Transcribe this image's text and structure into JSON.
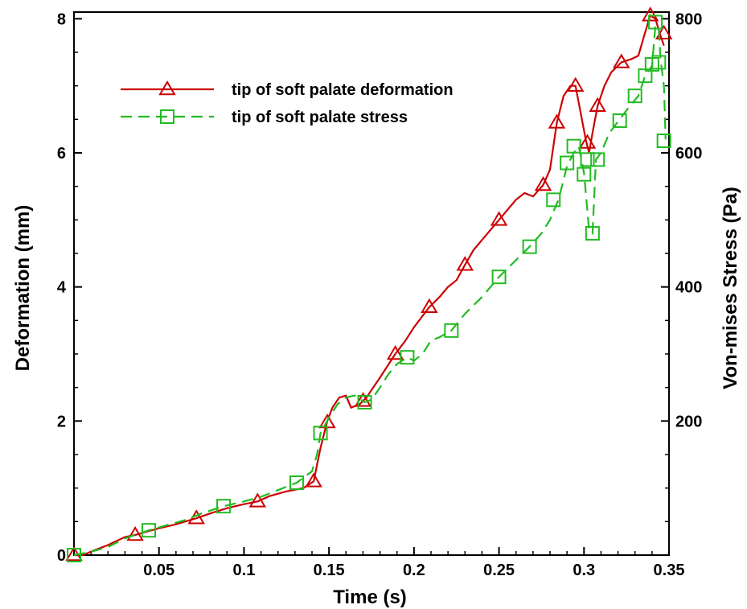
{
  "chart_data": {
    "type": "line",
    "xlabel": "Time (s)",
    "ylabel": "Deformation (mm)",
    "y2label": "Von-mises Stress (Pa)",
    "xlim": [
      0,
      0.35
    ],
    "ylim": [
      0,
      8.1
    ],
    "y2lim": [
      0,
      810
    ],
    "grid": false,
    "legend_position": "top-left",
    "xticks": [
      {
        "value": 0.05,
        "label": "0.05"
      },
      {
        "value": 0.1,
        "label": "0.1"
      },
      {
        "value": 0.15,
        "label": "0.15"
      },
      {
        "value": 0.2,
        "label": "0.2"
      },
      {
        "value": 0.25,
        "label": "0.25"
      },
      {
        "value": 0.3,
        "label": "0.3"
      },
      {
        "value": 0.35,
        "label": "0.35"
      }
    ],
    "yticks": [
      {
        "value": 0,
        "label": "0"
      },
      {
        "value": 2,
        "label": "2"
      },
      {
        "value": 4,
        "label": "4"
      },
      {
        "value": 6,
        "label": "6"
      },
      {
        "value": 8,
        "label": "8"
      }
    ],
    "y2ticks": [
      {
        "value": 200,
        "label": "200"
      },
      {
        "value": 400,
        "label": "400"
      },
      {
        "value": 600,
        "label": "600"
      },
      {
        "value": 800,
        "label": "800"
      }
    ],
    "series": [
      {
        "name": "tip of soft palate deformation",
        "axis": "left",
        "color": "#cc0000",
        "line": "solid",
        "marker": "triangle",
        "line_points": [
          [
            0.0,
            0.0
          ],
          [
            0.005,
            0.0
          ],
          [
            0.01,
            0.05
          ],
          [
            0.02,
            0.15
          ],
          [
            0.03,
            0.27
          ],
          [
            0.036,
            0.3
          ],
          [
            0.04,
            0.33
          ],
          [
            0.05,
            0.4
          ],
          [
            0.06,
            0.46
          ],
          [
            0.072,
            0.55
          ],
          [
            0.08,
            0.62
          ],
          [
            0.09,
            0.7
          ],
          [
            0.1,
            0.76
          ],
          [
            0.108,
            0.8
          ],
          [
            0.115,
            0.88
          ],
          [
            0.125,
            0.95
          ],
          [
            0.135,
            1.0
          ],
          [
            0.141,
            1.1
          ],
          [
            0.145,
            1.6
          ],
          [
            0.149,
            2.0
          ],
          [
            0.152,
            2.2
          ],
          [
            0.156,
            2.35
          ],
          [
            0.16,
            2.38
          ],
          [
            0.163,
            2.2
          ],
          [
            0.168,
            2.25
          ],
          [
            0.172,
            2.35
          ],
          [
            0.18,
            2.65
          ],
          [
            0.189,
            3.0
          ],
          [
            0.195,
            3.2
          ],
          [
            0.2,
            3.4
          ],
          [
            0.209,
            3.7
          ],
          [
            0.215,
            3.85
          ],
          [
            0.22,
            4.0
          ],
          [
            0.225,
            4.1
          ],
          [
            0.23,
            4.33
          ],
          [
            0.235,
            4.55
          ],
          [
            0.24,
            4.7
          ],
          [
            0.245,
            4.85
          ],
          [
            0.25,
            5.0
          ],
          [
            0.255,
            5.15
          ],
          [
            0.26,
            5.3
          ],
          [
            0.265,
            5.4
          ],
          [
            0.27,
            5.35
          ],
          [
            0.276,
            5.52
          ],
          [
            0.28,
            5.75
          ],
          [
            0.284,
            6.45
          ],
          [
            0.288,
            6.85
          ],
          [
            0.292,
            7.0
          ],
          [
            0.295,
            7.0
          ],
          [
            0.298,
            6.6
          ],
          [
            0.301,
            6.2
          ],
          [
            0.303,
            6.0
          ],
          [
            0.305,
            6.3
          ],
          [
            0.308,
            6.7
          ],
          [
            0.312,
            7.0
          ],
          [
            0.316,
            7.2
          ],
          [
            0.322,
            7.35
          ],
          [
            0.328,
            7.4
          ],
          [
            0.332,
            7.45
          ],
          [
            0.336,
            7.8
          ],
          [
            0.339,
            8.05
          ],
          [
            0.342,
            8.0
          ],
          [
            0.345,
            7.75
          ],
          [
            0.347,
            7.6
          ]
        ],
        "marker_points": [
          [
            0.0,
            0.0
          ],
          [
            0.036,
            0.3
          ],
          [
            0.072,
            0.55
          ],
          [
            0.108,
            0.8
          ],
          [
            0.141,
            1.1
          ],
          [
            0.149,
            1.98
          ],
          [
            0.17,
            2.3
          ],
          [
            0.189,
            3.0
          ],
          [
            0.209,
            3.7
          ],
          [
            0.23,
            4.33
          ],
          [
            0.25,
            5.0
          ],
          [
            0.276,
            5.52
          ],
          [
            0.284,
            6.45
          ],
          [
            0.295,
            7.0
          ],
          [
            0.302,
            6.15
          ],
          [
            0.308,
            6.7
          ],
          [
            0.322,
            7.35
          ],
          [
            0.339,
            8.05
          ],
          [
            0.347,
            7.78
          ]
        ]
      },
      {
        "name": "tip of soft palate stress",
        "axis": "right",
        "color": "#22bb22",
        "line": "dashed",
        "marker": "square",
        "line_points": [
          [
            0.0,
            0
          ],
          [
            0.01,
            5
          ],
          [
            0.02,
            12
          ],
          [
            0.03,
            25
          ],
          [
            0.044,
            37
          ],
          [
            0.055,
            45
          ],
          [
            0.065,
            52
          ],
          [
            0.075,
            62
          ],
          [
            0.088,
            73
          ],
          [
            0.1,
            80
          ],
          [
            0.11,
            87
          ],
          [
            0.12,
            97
          ],
          [
            0.131,
            108
          ],
          [
            0.14,
            125
          ],
          [
            0.143,
            150
          ],
          [
            0.145,
            182
          ],
          [
            0.15,
            205
          ],
          [
            0.155,
            225
          ],
          [
            0.16,
            235
          ],
          [
            0.165,
            238
          ],
          [
            0.171,
            228
          ],
          [
            0.175,
            232
          ],
          [
            0.18,
            250
          ],
          [
            0.185,
            270
          ],
          [
            0.19,
            285
          ],
          [
            0.196,
            295
          ],
          [
            0.2,
            290
          ],
          [
            0.205,
            300
          ],
          [
            0.21,
            320
          ],
          [
            0.215,
            325
          ],
          [
            0.222,
            335
          ],
          [
            0.23,
            360
          ],
          [
            0.24,
            385
          ],
          [
            0.25,
            415
          ],
          [
            0.26,
            440
          ],
          [
            0.268,
            460
          ],
          [
            0.275,
            480
          ],
          [
            0.28,
            500
          ],
          [
            0.285,
            530
          ],
          [
            0.29,
            580
          ],
          [
            0.294,
            600
          ],
          [
            0.297,
            610
          ],
          [
            0.3,
            570
          ],
          [
            0.303,
            485
          ],
          [
            0.305,
            480
          ],
          [
            0.307,
            590
          ],
          [
            0.31,
            600
          ],
          [
            0.315,
            630
          ],
          [
            0.321,
            650
          ],
          [
            0.327,
            670
          ],
          [
            0.332,
            685
          ],
          [
            0.336,
            715
          ],
          [
            0.34,
            730
          ],
          [
            0.342,
            790
          ],
          [
            0.344,
            785
          ],
          [
            0.345,
            740
          ],
          [
            0.347,
            700
          ],
          [
            0.348,
            620
          ]
        ],
        "marker_points": [
          [
            0.0,
            0
          ],
          [
            0.044,
            37
          ],
          [
            0.088,
            73
          ],
          [
            0.131,
            108
          ],
          [
            0.145,
            182
          ],
          [
            0.171,
            228
          ],
          [
            0.196,
            295
          ],
          [
            0.222,
            335
          ],
          [
            0.25,
            415
          ],
          [
            0.268,
            460
          ],
          [
            0.282,
            530
          ],
          [
            0.29,
            585
          ],
          [
            0.294,
            610
          ],
          [
            0.3,
            568
          ],
          [
            0.305,
            480
          ],
          [
            0.302,
            590
          ],
          [
            0.308,
            590
          ],
          [
            0.321,
            648
          ],
          [
            0.33,
            685
          ],
          [
            0.336,
            715
          ],
          [
            0.34,
            732
          ],
          [
            0.342,
            795
          ],
          [
            0.344,
            735
          ],
          [
            0.347,
            618
          ]
        ]
      }
    ]
  }
}
